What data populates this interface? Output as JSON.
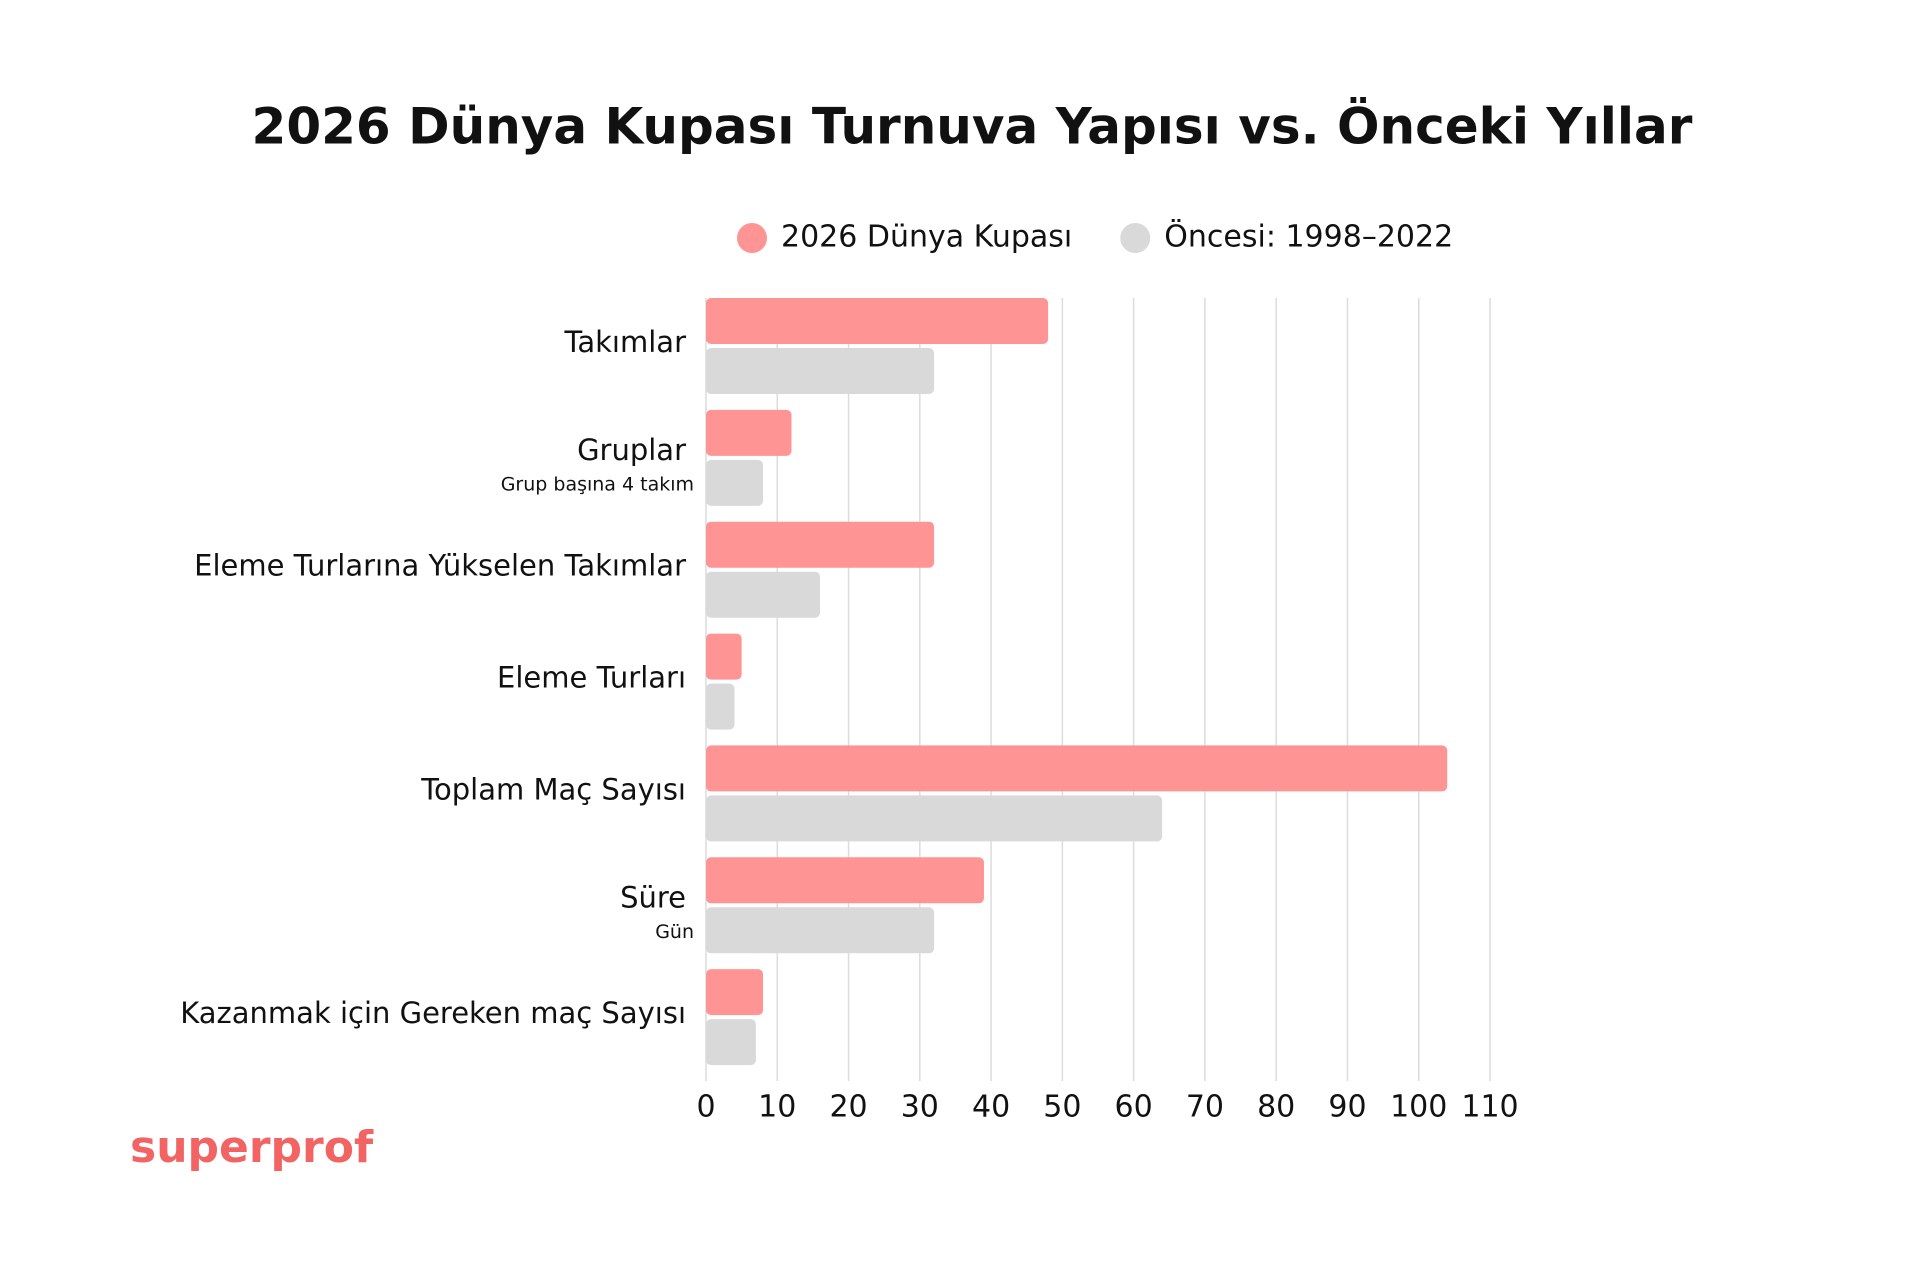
{
  "chart_data": {
    "type": "barh",
    "title": "2026 Dünya Kupası Turnuva Yapısı vs. Önceki Yıllar",
    "categories": [
      "Takımlar",
      "Gruplar",
      "Eleme Turlarına Yükselen Takımlar",
      "Eleme Turları",
      "Toplam Maç Sayısı",
      "Süre",
      "Kazanmak için Gereken maç Sayısı"
    ],
    "category_notes": [
      null,
      "Grup başına 4 takım",
      null,
      null,
      null,
      "Gün",
      null
    ],
    "series": [
      {
        "name": "2026 Dünya Kupası",
        "color": "#ff9494",
        "values": [
          48,
          12,
          32,
          5,
          104,
          39,
          8
        ]
      },
      {
        "name": "Öncesi: 1998–2022",
        "color": "#d9d9d9",
        "values": [
          32,
          8,
          16,
          4,
          64,
          32,
          7
        ]
      }
    ],
    "xlim": [
      0,
      110
    ],
    "xticks": [
      0,
      10,
      20,
      30,
      40,
      50,
      60,
      70,
      80,
      90,
      100,
      110
    ],
    "grid": true,
    "legend": "top",
    "brand": "superprof"
  }
}
